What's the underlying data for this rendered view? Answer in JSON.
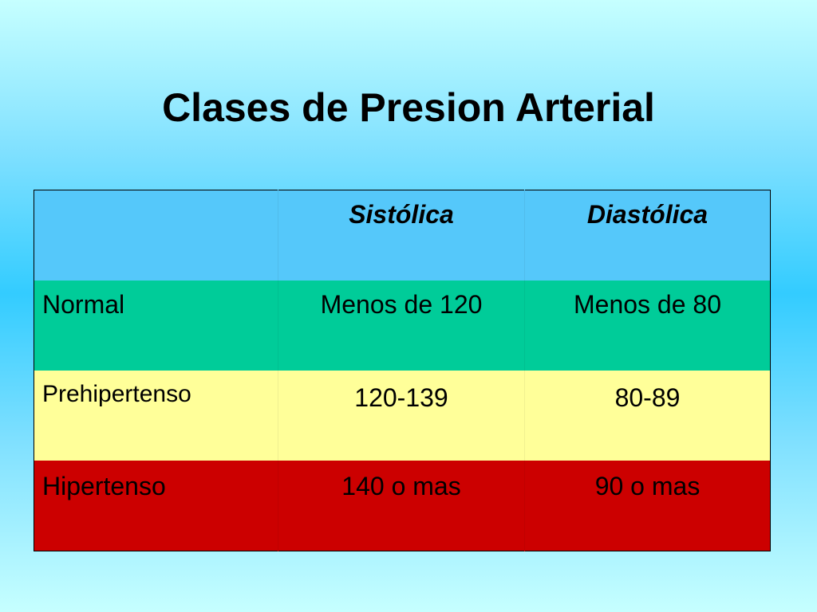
{
  "title": "Clases de Presion Arterial",
  "table": {
    "headers": [
      "",
      "Sistólica",
      "Diastólica"
    ],
    "rows": [
      {
        "category": "Normal",
        "sistolica": "Menos de 120",
        "diastolica": "Menos de 80",
        "color": "#00cc99"
      },
      {
        "category": "Prehipertenso",
        "sistolica": "120-139",
        "diastolica": "80-89",
        "color": "#ffff99"
      },
      {
        "category": "Hipertenso",
        "sistolica": "140 o mas",
        "diastolica": "90 o mas",
        "color": "#cc0000"
      }
    ],
    "header_color": "#55c8fa"
  }
}
